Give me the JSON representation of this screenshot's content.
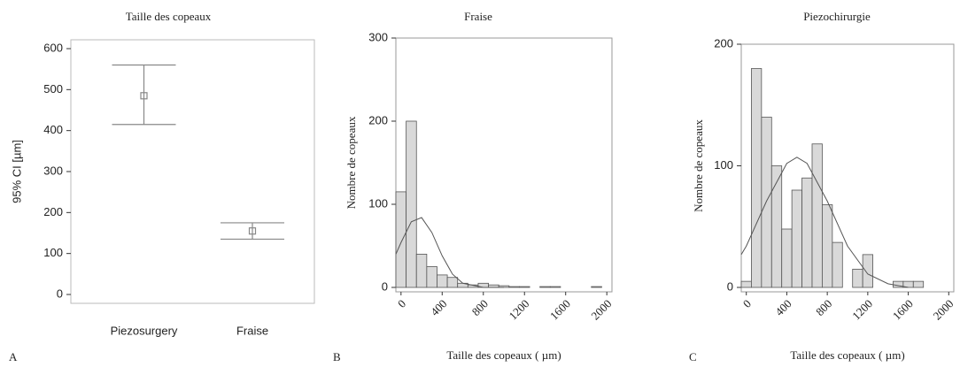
{
  "chart_data": [
    {
      "type": "errorbar",
      "panel": "A",
      "title": "Taille des copeaux",
      "ylabel": "95% CI [µm]",
      "categories": [
        "Piezosurgery",
        "Fraise"
      ],
      "values": [
        485,
        155
      ],
      "lower": [
        415,
        135
      ],
      "upper": [
        560,
        175
      ],
      "color": "#888888",
      "ylim": [
        0,
        600
      ],
      "yticks": [
        0,
        100,
        200,
        300,
        400,
        500,
        600
      ]
    },
    {
      "type": "histogram",
      "panel": "B",
      "title": "Fraise",
      "xlabel": "Taille des copeaux ( µm)",
      "ylabel": "Nombre de copeaux",
      "bins": [
        -50,
        50,
        150,
        250,
        350,
        450,
        550,
        650,
        750,
        850,
        950,
        1050,
        1150,
        1250,
        1350,
        1450,
        1550,
        1650,
        1750,
        1850,
        1950
      ],
      "counts": [
        115,
        200,
        40,
        25,
        15,
        12,
        5,
        3,
        5,
        3,
        2,
        1,
        1,
        0,
        1,
        1,
        0,
        0,
        0,
        1
      ],
      "curve": {
        "x": [
          -50,
          0,
          100,
          200,
          300,
          400,
          500,
          600,
          800,
          1000
        ],
        "y": [
          40,
          54,
          79,
          84,
          66,
          38,
          16,
          5,
          0,
          0
        ]
      },
      "color": "#d9d9d9",
      "xlim": [
        -50,
        2050
      ],
      "xticks": [
        0,
        400,
        800,
        1200,
        1600,
        2000
      ],
      "ylim": [
        0,
        300
      ],
      "yticks": [
        0,
        100,
        200,
        300
      ]
    },
    {
      "type": "histogram",
      "panel": "C",
      "title": "Piezochirurgie",
      "xlabel": "Taille des copeaux ( µm)",
      "ylabel": "Nombre de copeaux",
      "bins": [
        -50,
        50,
        150,
        250,
        350,
        450,
        550,
        650,
        750,
        850,
        950,
        1050,
        1150,
        1250,
        1350,
        1450,
        1550,
        1650,
        1750
      ],
      "counts": [
        5,
        180,
        140,
        100,
        48,
        80,
        90,
        118,
        68,
        37,
        0,
        15,
        27,
        0,
        0,
        5,
        5,
        5
      ],
      "curve": {
        "x": [
          -50,
          0,
          200,
          400,
          500,
          600,
          800,
          1000,
          1200,
          1400,
          1600
        ],
        "y": [
          27,
          34,
          71,
          102,
          107,
          102,
          71,
          34,
          11,
          3,
          0
        ]
      },
      "color": "#d9d9d9",
      "xlim": [
        -50,
        2050
      ],
      "xticks": [
        0,
        400,
        800,
        1200,
        1600,
        2000
      ],
      "ylim": [
        0,
        200
      ],
      "yticks": [
        0,
        100,
        200
      ]
    }
  ]
}
